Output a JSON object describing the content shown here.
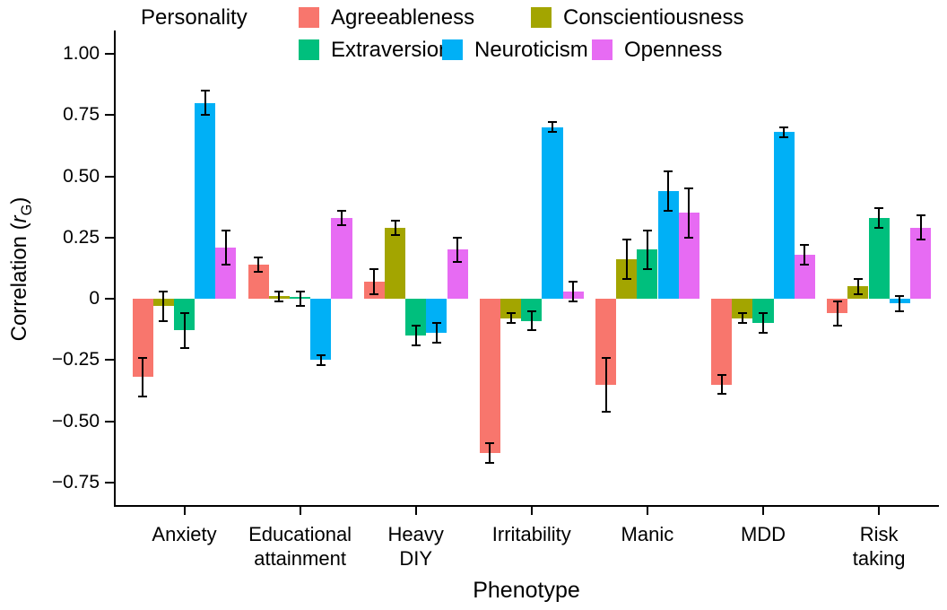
{
  "chart_data": {
    "type": "bar",
    "title": "",
    "xlabel": "Phenotype",
    "ylabel": "Correlation (rG)",
    "ylabel_parts": {
      "prefix": "Correlation (",
      "var": "r",
      "sub": "G",
      "suffix": ")"
    },
    "legend_title": "Personality",
    "legend_position": "top",
    "grid": false,
    "ylim": [
      -0.85,
      1.1
    ],
    "yticks": [
      1.0,
      0.75,
      0.5,
      0.25,
      0,
      -0.25,
      -0.5,
      -0.75
    ],
    "ytick_labels": [
      "1.00",
      "0.75",
      "0.50",
      "0.25",
      "0",
      "−0.25",
      "−0.50",
      "−0.75"
    ],
    "categories": [
      "Anxiety",
      "Educational attainment",
      "Heavy DIY",
      "Irritability",
      "Manic",
      "MDD",
      "Risk taking"
    ],
    "category_lines": [
      [
        "Anxiety"
      ],
      [
        "Educational",
        "attainment"
      ],
      [
        "Heavy",
        "DIY"
      ],
      [
        "Irritability"
      ],
      [
        "Manic"
      ],
      [
        "MDD"
      ],
      [
        "Risk",
        "taking"
      ]
    ],
    "error_bars": true,
    "series": [
      {
        "name": "Agreeableness",
        "color": "#F8766D",
        "values": [
          -0.32,
          0.14,
          0.07,
          -0.63,
          -0.35,
          -0.35,
          -0.06
        ],
        "errors": [
          0.08,
          0.03,
          0.05,
          0.04,
          0.11,
          0.04,
          0.05
        ]
      },
      {
        "name": "Conscientiousness",
        "color": "#A3A500",
        "values": [
          -0.03,
          0.01,
          0.29,
          -0.08,
          0.16,
          -0.08,
          0.05
        ],
        "errors": [
          0.06,
          0.02,
          0.03,
          0.02,
          0.08,
          0.02,
          0.03
        ]
      },
      {
        "name": "Extraversion",
        "color": "#00BF7D",
        "values": [
          -0.13,
          0.0,
          -0.15,
          -0.09,
          0.2,
          -0.1,
          0.33
        ],
        "errors": [
          0.07,
          0.03,
          0.04,
          0.04,
          0.08,
          0.04,
          0.04
        ]
      },
      {
        "name": "Neuroticism",
        "color": "#00B0F6",
        "values": [
          0.8,
          -0.25,
          -0.14,
          0.7,
          0.44,
          0.68,
          -0.02
        ],
        "errors": [
          0.05,
          0.02,
          0.04,
          0.02,
          0.08,
          0.02,
          0.03
        ]
      },
      {
        "name": "Openness",
        "color": "#E76BF3",
        "values": [
          0.21,
          0.33,
          0.2,
          0.03,
          0.35,
          0.18,
          0.29
        ],
        "errors": [
          0.07,
          0.03,
          0.05,
          0.04,
          0.1,
          0.04,
          0.05
        ]
      }
    ]
  }
}
